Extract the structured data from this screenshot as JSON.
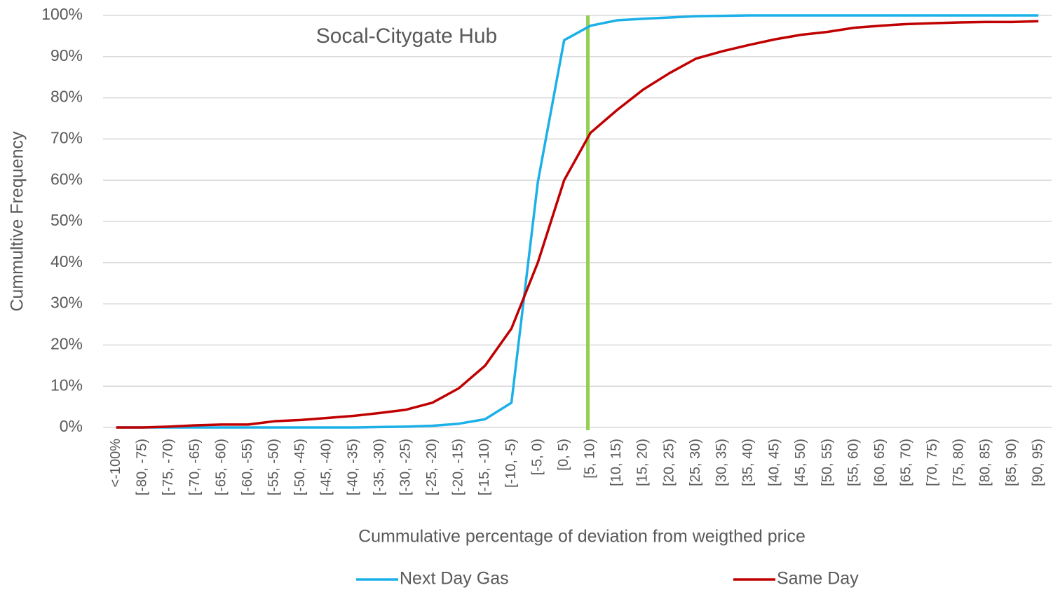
{
  "chart_data": {
    "type": "line",
    "annotations": [
      "Socal-Citygate Hub"
    ],
    "xlabel": "Cummulative percentage of deviation from  weigthed price",
    "ylabel": "Cummultive Frequency",
    "categories": [
      "<-100%",
      "[-80, -75)",
      "[-75, -70)",
      "[-70, -65)",
      "[-65, -60)",
      "[-60, -55)",
      "[-55, -50)",
      "[-50, -45)",
      "[-45, -40)",
      "[-40, -35)",
      "[-35, -30)",
      "[-30, -25)",
      "[-25, -20)",
      "[-20, -15)",
      "[-15, -10)",
      "[-10, -5)",
      "[-5, 0)",
      "[0, 5)",
      "[5, 10)",
      "[10, 15)",
      "[15, 20)",
      "[20, 25)",
      "[25, 30)",
      "[30, 35)",
      "[35, 40)",
      "[40, 45)",
      "[45, 50)",
      "[50, 55)",
      "[55, 60)",
      "[60, 65)",
      "[65, 70)",
      "[70, 75)",
      "[75, 80)",
      "[80, 85)",
      "[85, 90)",
      "[90, 95)"
    ],
    "series": [
      {
        "name": "Next Day Gas",
        "color": "#1cb0e8",
        "values": [
          0,
          0,
          0,
          0,
          0,
          0,
          0,
          0,
          0,
          0,
          0.1,
          0.2,
          0.4,
          0.9,
          2,
          6,
          59.5,
          94,
          97.5,
          98.8,
          99.2,
          99.5,
          99.8,
          99.9,
          100,
          100,
          100,
          100,
          100,
          100,
          100,
          100,
          100,
          100,
          100,
          100
        ]
      },
      {
        "name": "Same Day",
        "color": "#c00000",
        "values": [
          0,
          0,
          0.2,
          0.5,
          0.7,
          0.7,
          1.5,
          1.8,
          2.3,
          2.8,
          3.5,
          4.3,
          6,
          9.5,
          15,
          24,
          40,
          60,
          71.5,
          77,
          82,
          86,
          89.5,
          91.3,
          92.8,
          94.2,
          95.3,
          96,
          97,
          97.5,
          97.9,
          98.1,
          98.3,
          98.4,
          98.4,
          98.6
        ]
      }
    ],
    "ylim": [
      0,
      100
    ],
    "yticks": [
      {
        "value": 0,
        "label": "0%"
      },
      {
        "value": 10,
        "label": "10%"
      },
      {
        "value": 20,
        "label": "20%"
      },
      {
        "value": 30,
        "label": "30%"
      },
      {
        "value": 40,
        "label": "40%"
      },
      {
        "value": 50,
        "label": "50%"
      },
      {
        "value": 60,
        "label": "60%"
      },
      {
        "value": 70,
        "label": "70%"
      },
      {
        "value": 80,
        "label": "80%"
      },
      {
        "value": 90,
        "label": "90%"
      },
      {
        "value": 100,
        "label": "100%"
      }
    ],
    "grid": true,
    "legend": "bottom"
  }
}
